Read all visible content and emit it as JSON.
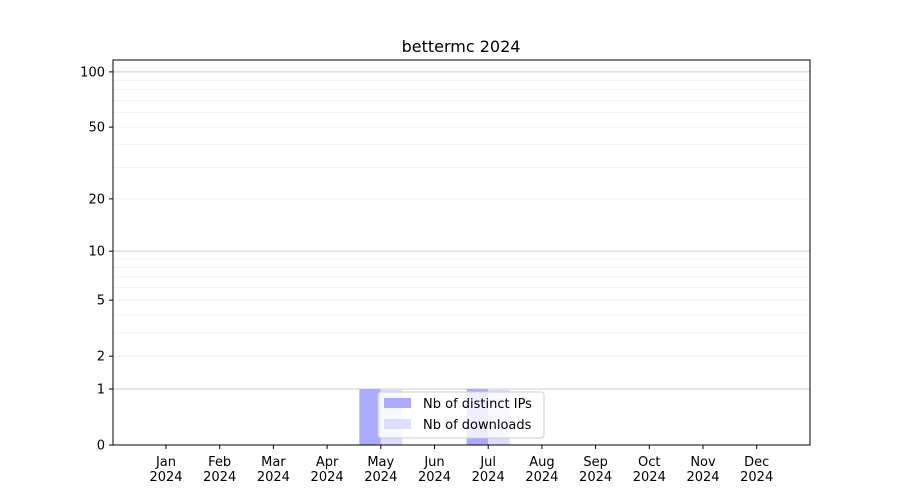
{
  "chart_data": {
    "type": "bar",
    "title": "bettermc 2024",
    "xlabel": "",
    "ylabel": "",
    "yscale": "log(y+1)",
    "ylim": [
      0,
      116
    ],
    "yticks": [
      0,
      1,
      2,
      5,
      10,
      20,
      50,
      100
    ],
    "grid": true,
    "legend_position": "lower center",
    "categories": [
      "Jan\n2024",
      "Feb\n2024",
      "Mar\n2024",
      "Apr\n2024",
      "May\n2024",
      "Jun\n2024",
      "Jul\n2024",
      "Aug\n2024",
      "Sep\n2024",
      "Oct\n2024",
      "Nov\n2024",
      "Dec\n2024"
    ],
    "series": [
      {
        "name": "Nb of distinct IPs",
        "color": "#aaaaff",
        "values": [
          0,
          0,
          0,
          0,
          1,
          0,
          1,
          0,
          0,
          0,
          0,
          0
        ]
      },
      {
        "name": "Nb of downloads",
        "color": "#ddddff",
        "values": [
          0,
          0,
          0,
          0,
          1,
          0,
          1,
          0,
          0,
          0,
          0,
          0
        ]
      }
    ]
  }
}
